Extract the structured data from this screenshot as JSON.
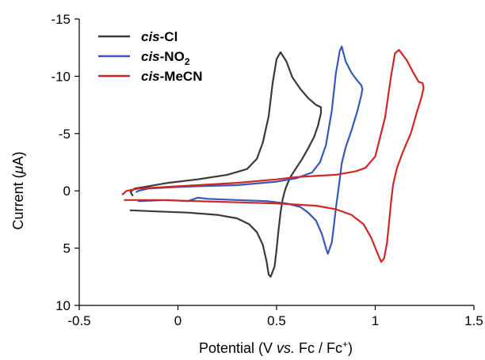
{
  "chart_data": {
    "type": "line",
    "title": "",
    "xlabel": {
      "prefix": "Potential (V ",
      "italic": "vs.",
      "suffix": " Fc / Fc",
      "sup": "+",
      "close": ")"
    },
    "ylabel": {
      "prefix": "Current (",
      "italic": "μ",
      "suffix": "A)"
    },
    "xlim": [
      -0.5,
      1.5
    ],
    "ylim": [
      10,
      -15
    ],
    "y_axis_inverted": true,
    "x_ticks": [
      "-0.5",
      "0",
      "0.5",
      "1",
      "1.5"
    ],
    "x_tick_values": [
      -0.5,
      0,
      0.5,
      1,
      1.5
    ],
    "y_ticks": [
      "-15",
      "-10",
      "-5",
      "0",
      "5",
      "10"
    ],
    "y_tick_values": [
      -15,
      -10,
      -5,
      0,
      5,
      10
    ],
    "grid": false,
    "legend_position": "top-left",
    "series": [
      {
        "name": "cis-Cl",
        "legend": {
          "italic": "cis",
          "text": "-Cl"
        },
        "color": "#3a3a3a",
        "points": [
          [
            -0.24,
            1.7
          ],
          [
            -0.1,
            1.8
          ],
          [
            0.05,
            1.9
          ],
          [
            0.2,
            2.1
          ],
          [
            0.3,
            2.4
          ],
          [
            0.36,
            2.9
          ],
          [
            0.4,
            3.6
          ],
          [
            0.43,
            4.7
          ],
          [
            0.45,
            6.2
          ],
          [
            0.46,
            7.3
          ],
          [
            0.47,
            7.5
          ],
          [
            0.49,
            6.6
          ],
          [
            0.5,
            5.1
          ],
          [
            0.51,
            3.4
          ],
          [
            0.52,
            1.9
          ],
          [
            0.53,
            0.8
          ],
          [
            0.54,
            0.1
          ],
          [
            0.55,
            -0.4
          ],
          [
            0.57,
            -1.2
          ],
          [
            0.6,
            -2.0
          ],
          [
            0.63,
            -2.8
          ],
          [
            0.66,
            -3.7
          ],
          [
            0.69,
            -4.7
          ],
          [
            0.71,
            -5.7
          ],
          [
            0.725,
            -6.8
          ],
          [
            0.725,
            -7.3
          ],
          [
            0.7,
            -7.5
          ],
          [
            0.66,
            -8.1
          ],
          [
            0.62,
            -8.9
          ],
          [
            0.58,
            -9.9
          ],
          [
            0.55,
            -11.3
          ],
          [
            0.52,
            -12.1
          ],
          [
            0.5,
            -11.5
          ],
          [
            0.48,
            -9.4
          ],
          [
            0.46,
            -6.5
          ],
          [
            0.43,
            -4.2
          ],
          [
            0.4,
            -2.8
          ],
          [
            0.35,
            -1.9
          ],
          [
            0.25,
            -1.4
          ],
          [
            0.1,
            -1.0
          ],
          [
            -0.05,
            -0.7
          ],
          [
            -0.15,
            -0.4
          ],
          [
            -0.22,
            -0.2
          ],
          [
            -0.24,
            0.1
          ],
          [
            -0.23,
            0.4
          ]
        ]
      },
      {
        "name": "cis-NO2",
        "legend": {
          "italic": "cis",
          "text": "-NO",
          "sub": "2"
        },
        "color": "#3658b8",
        "points": [
          [
            -0.2,
            0.9
          ],
          [
            -0.05,
            0.8
          ],
          [
            0.05,
            0.9
          ],
          [
            0.1,
            0.6
          ],
          [
            0.15,
            0.7
          ],
          [
            0.3,
            0.8
          ],
          [
            0.45,
            0.9
          ],
          [
            0.55,
            1.1
          ],
          [
            0.62,
            1.4
          ],
          [
            0.66,
            1.9
          ],
          [
            0.7,
            2.6
          ],
          [
            0.73,
            3.8
          ],
          [
            0.75,
            5.0
          ],
          [
            0.76,
            5.5
          ],
          [
            0.78,
            4.5
          ],
          [
            0.79,
            3.1
          ],
          [
            0.8,
            1.6
          ],
          [
            0.81,
            0.3
          ],
          [
            0.82,
            -1.0
          ],
          [
            0.83,
            -2.4
          ],
          [
            0.85,
            -3.8
          ],
          [
            0.88,
            -5.3
          ],
          [
            0.91,
            -7.0
          ],
          [
            0.93,
            -8.4
          ],
          [
            0.935,
            -8.9
          ],
          [
            0.93,
            -9.2
          ],
          [
            0.91,
            -9.6
          ],
          [
            0.88,
            -10.3
          ],
          [
            0.85,
            -11.3
          ],
          [
            0.83,
            -12.6
          ],
          [
            0.82,
            -12.2
          ],
          [
            0.8,
            -10.2
          ],
          [
            0.78,
            -7.0
          ],
          [
            0.75,
            -4.0
          ],
          [
            0.72,
            -2.5
          ],
          [
            0.68,
            -1.6
          ],
          [
            0.6,
            -1.1
          ],
          [
            0.5,
            -0.8
          ],
          [
            0.3,
            -0.5
          ],
          [
            0.1,
            -0.4
          ],
          [
            -0.05,
            -0.3
          ],
          [
            -0.15,
            -0.2
          ],
          [
            -0.2,
            0.0
          ],
          [
            -0.21,
            0.1
          ]
        ]
      },
      {
        "name": "cis-MeCN",
        "legend": {
          "italic": "cis",
          "text": "-MeCN"
        },
        "color": "#d02626",
        "points": [
          [
            -0.27,
            0.8
          ],
          [
            -0.1,
            0.8
          ],
          [
            0.1,
            0.9
          ],
          [
            0.3,
            1.0
          ],
          [
            0.5,
            1.1
          ],
          [
            0.7,
            1.3
          ],
          [
            0.8,
            1.6
          ],
          [
            0.88,
            2.1
          ],
          [
            0.94,
            2.9
          ],
          [
            0.98,
            4.1
          ],
          [
            1.01,
            5.4
          ],
          [
            1.03,
            6.2
          ],
          [
            1.045,
            5.9
          ],
          [
            1.06,
            4.5
          ],
          [
            1.07,
            2.8
          ],
          [
            1.08,
            1.0
          ],
          [
            1.09,
            -0.5
          ],
          [
            1.11,
            -2.0
          ],
          [
            1.14,
            -3.4
          ],
          [
            1.18,
            -5.0
          ],
          [
            1.21,
            -6.8
          ],
          [
            1.235,
            -8.2
          ],
          [
            1.245,
            -9.0
          ],
          [
            1.24,
            -9.4
          ],
          [
            1.22,
            -9.5
          ],
          [
            1.19,
            -10.4
          ],
          [
            1.16,
            -11.4
          ],
          [
            1.12,
            -12.3
          ],
          [
            1.1,
            -12.0
          ],
          [
            1.08,
            -10.0
          ],
          [
            1.05,
            -6.4
          ],
          [
            1.0,
            -3.0
          ],
          [
            0.95,
            -2.0
          ],
          [
            0.9,
            -1.7
          ],
          [
            0.8,
            -1.4
          ],
          [
            0.6,
            -1.2
          ],
          [
            0.5,
            -1.0
          ],
          [
            0.3,
            -0.7
          ],
          [
            0.1,
            -0.5
          ],
          [
            -0.1,
            -0.3
          ],
          [
            -0.2,
            -0.2
          ],
          [
            -0.26,
            0.0
          ],
          [
            -0.28,
            0.3
          ]
        ]
      }
    ]
  }
}
